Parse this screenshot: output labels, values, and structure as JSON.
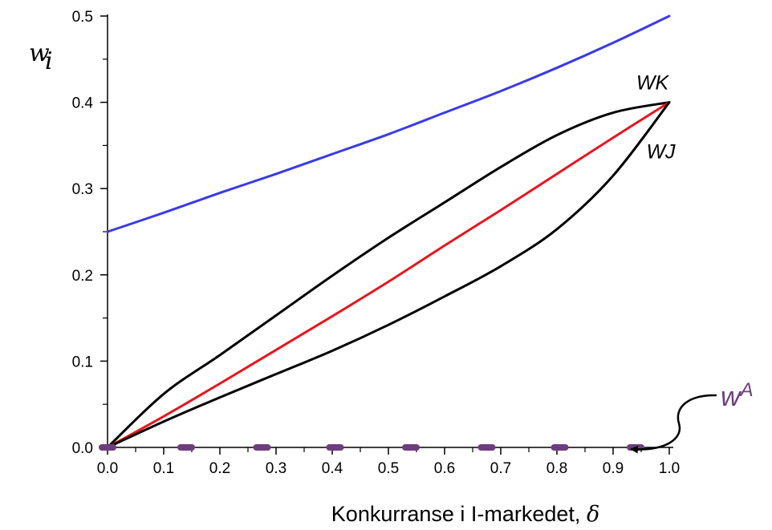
{
  "chart_data": {
    "type": "line",
    "xlabel": "Konkurranse i I-markedet, ",
    "xlabel_symbol": "δ",
    "ylabel": "w",
    "ylabel_sub": "i",
    "xlim": [
      0,
      1
    ],
    "ylim": [
      0,
      0.5
    ],
    "grid": false,
    "xticks": [
      "0.0",
      "0.1",
      "0.2",
      "0.3",
      "0.4",
      "0.5",
      "0.6",
      "0.7",
      "0.8",
      "0.9",
      "1.0"
    ],
    "yticks": [
      "0.0",
      "0.1",
      "0.2",
      "0.3",
      "0.4",
      "0.5"
    ],
    "series": [
      {
        "key": "blue",
        "color": "#3a3ae8",
        "x": [
          0,
          0.1,
          0.2,
          0.3,
          0.4,
          0.5,
          0.6,
          0.7,
          0.8,
          0.9,
          1.0
        ],
        "y": [
          0.25,
          0.272,
          0.295,
          0.317,
          0.34,
          0.363,
          0.388,
          0.413,
          0.44,
          0.469,
          0.5
        ]
      },
      {
        "key": "upper-black",
        "name": "WK",
        "color": "#000000",
        "x": [
          0,
          0.1,
          0.2,
          0.3,
          0.4,
          0.5,
          0.6,
          0.7,
          0.8,
          0.9,
          1.0
        ],
        "y": [
          0,
          0.062,
          0.107,
          0.153,
          0.199,
          0.243,
          0.284,
          0.325,
          0.362,
          0.388,
          0.4
        ]
      },
      {
        "key": "red",
        "color": "#e8141e",
        "x": [
          0,
          0.1,
          0.2,
          0.3,
          0.4,
          0.5,
          0.6,
          0.7,
          0.8,
          0.9,
          1.0
        ],
        "y": [
          0,
          0.036,
          0.074,
          0.113,
          0.152,
          0.192,
          0.234,
          0.275,
          0.317,
          0.359,
          0.4
        ]
      },
      {
        "key": "lower-black",
        "name": "WJ",
        "color": "#000000",
        "x": [
          0,
          0.1,
          0.2,
          0.3,
          0.4,
          0.5,
          0.6,
          0.7,
          0.8,
          0.9,
          1.0
        ],
        "y": [
          0,
          0.03,
          0.058,
          0.085,
          0.112,
          0.142,
          0.175,
          0.21,
          0.253,
          0.315,
          0.4
        ]
      }
    ],
    "purple_dashes": {
      "color": "#6d3d7e",
      "y": 0,
      "x_centers": [
        0.0,
        0.14,
        0.275,
        0.405,
        0.54,
        0.675,
        0.805,
        0.94
      ],
      "label": "w",
      "label_sup": "A"
    },
    "annotations": [
      {
        "text": "WK",
        "x": 0.97,
        "y": 0.415
      },
      {
        "text": "WJ",
        "x": 0.985,
        "y": 0.335
      }
    ]
  }
}
